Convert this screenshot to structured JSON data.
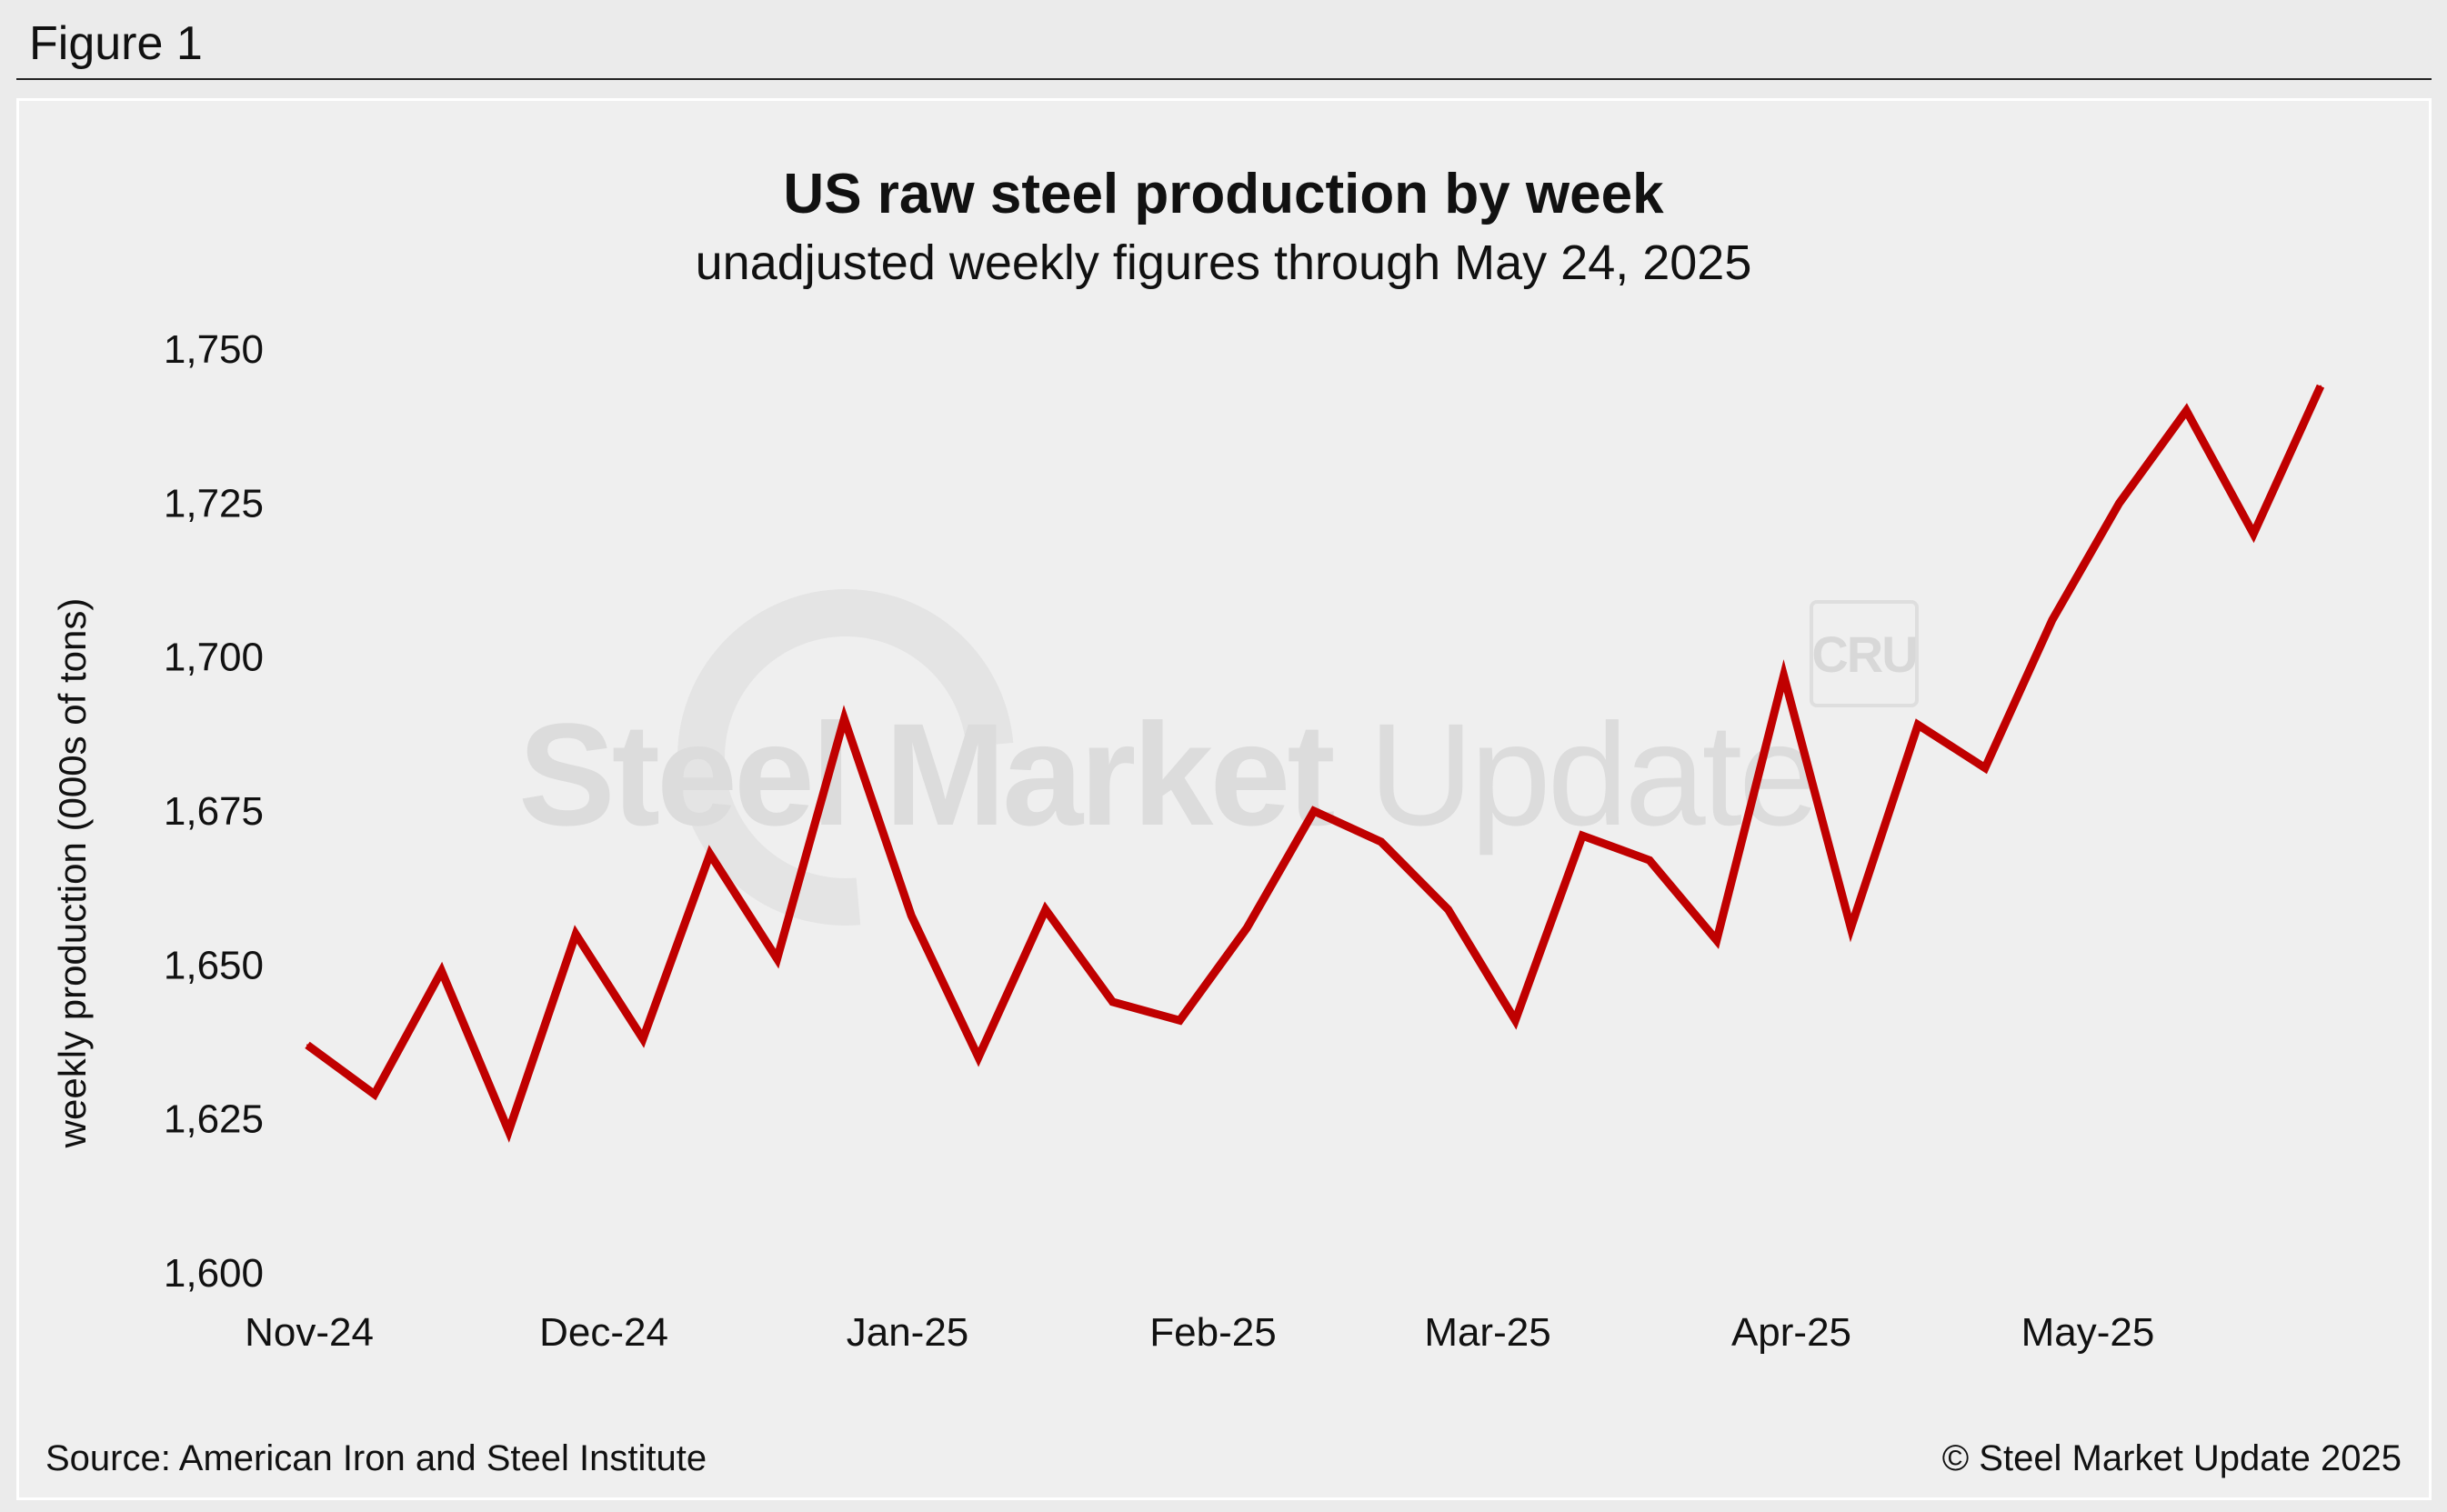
{
  "figure_label": "Figure 1",
  "watermark": {
    "text_bold": "Steel Market",
    "text_light": "Update",
    "logo_text": "CRU"
  },
  "source": "Source: American Iron and Steel Institute",
  "copyright": "© Steel Market Update 2025",
  "colors": {
    "line": "#c00000",
    "background": "#efefef",
    "text": "#111111"
  },
  "chart_data": {
    "type": "line",
    "title": "US raw steel production by week",
    "subtitle": "unadjusted weekly figures through May 24, 2025",
    "ylabel": "weekly production (000s of tons)",
    "xlabel": "",
    "ylim": [
      1600,
      1750
    ],
    "yticks": [
      "1,600",
      "1,625",
      "1,650",
      "1,675",
      "1,700",
      "1,725",
      "1,750"
    ],
    "xtick_labels": [
      "Nov-24",
      "Dec-24",
      "Jan-25",
      "Feb-25",
      "Mar-25",
      "Apr-25",
      "May-25"
    ],
    "grid": false,
    "legend": "none",
    "series": [
      {
        "values": [
          1637,
          1629,
          1649,
          1623,
          1655,
          1638,
          1668,
          1651,
          1690,
          1658,
          1635,
          1659,
          1644,
          1641,
          1656,
          1675,
          1670,
          1659,
          1641,
          1671,
          1667,
          1654,
          1697,
          1656,
          1689,
          1682,
          1706,
          1725,
          1740,
          1720,
          1744
        ]
      }
    ]
  }
}
